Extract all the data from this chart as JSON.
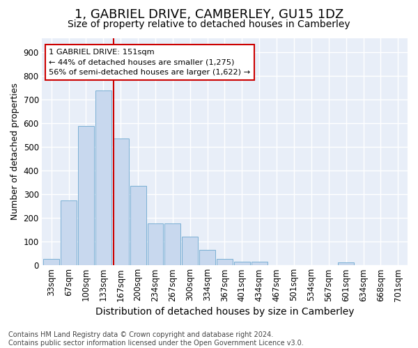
{
  "title": "1, GABRIEL DRIVE, CAMBERLEY, GU15 1DZ",
  "subtitle": "Size of property relative to detached houses in Camberley",
  "xlabel": "Distribution of detached houses by size in Camberley",
  "ylabel": "Number of detached properties",
  "footer_line1": "Contains HM Land Registry data © Crown copyright and database right 2024.",
  "footer_line2": "Contains public sector information licensed under the Open Government Licence v3.0.",
  "bar_labels": [
    "33sqm",
    "67sqm",
    "100sqm",
    "133sqm",
    "167sqm",
    "200sqm",
    "234sqm",
    "267sqm",
    "300sqm",
    "334sqm",
    "367sqm",
    "401sqm",
    "434sqm",
    "467sqm",
    "501sqm",
    "534sqm",
    "567sqm",
    "601sqm",
    "634sqm",
    "668sqm",
    "701sqm"
  ],
  "bar_values": [
    25,
    275,
    590,
    740,
    535,
    335,
    175,
    175,
    120,
    65,
    25,
    15,
    15,
    0,
    0,
    0,
    0,
    10,
    0,
    0,
    0
  ],
  "bar_color": "#c8d8ee",
  "bar_edge_color": "#7aafd4",
  "figure_bg": "#ffffff",
  "axes_bg": "#e8eef8",
  "grid_color": "#ffffff",
  "vline_color": "#cc0000",
  "vline_x_index": 3.576,
  "annotation_text_line1": "1 GABRIEL DRIVE: 151sqm",
  "annotation_text_line2": "← 44% of detached houses are smaller (1,275)",
  "annotation_text_line3": "56% of semi-detached houses are larger (1,622) →",
  "annotation_box_color": "#ffffff",
  "annotation_box_edge": "#cc0000",
  "ylim": [
    0,
    960
  ],
  "yticks": [
    0,
    100,
    200,
    300,
    400,
    500,
    600,
    700,
    800,
    900
  ],
  "title_fontsize": 13,
  "subtitle_fontsize": 10,
  "ylabel_fontsize": 9,
  "xlabel_fontsize": 10,
  "tick_fontsize": 8.5,
  "footer_fontsize": 7
}
